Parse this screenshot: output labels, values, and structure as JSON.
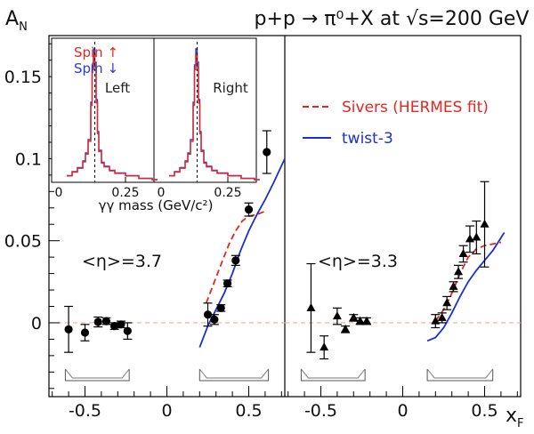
{
  "chart_data": {
    "type": "scatter",
    "title": "p+p → π⁰+X at √s=200 GeV",
    "ylabel": "A",
    "ylabel_sub": "N",
    "xlabel": "x",
    "xlabel_sub": "F",
    "ylim": [
      -0.045,
      0.175
    ],
    "y_ticks": [
      0,
      0.05,
      0.1,
      0.15
    ],
    "y_tick_labels": [
      "0",
      "0.05",
      "0.1",
      "0.15"
    ],
    "zero_line_color": "#f3a6a6",
    "panels": [
      {
        "xlim": [
          -0.72,
          0.72
        ],
        "x_ticks": [
          -0.5,
          0,
          0.5
        ],
        "x_tick_labels": [
          "-0.5",
          "0",
          "0.5"
        ],
        "annotation": "<η>=3.7",
        "series": [
          {
            "marker": "circle",
            "x": [
              -0.6,
              -0.5,
              -0.42,
              -0.37,
              -0.32,
              -0.28,
              -0.24,
              0.25,
              0.29,
              0.33,
              0.37,
              0.42,
              0.5,
              0.61
            ],
            "y": [
              -0.004,
              -0.006,
              0.0005,
              0.001,
              -0.002,
              -0.001,
              -0.005,
              0.005,
              0.002,
              0.009,
              0.024,
              0.038,
              0.069,
              0.104
            ],
            "err": [
              0.014,
              0.005,
              0.003,
              0.002,
              0.002,
              0.002,
              0.005,
              0.007,
              0.003,
              0.002,
              0.002,
              0.003,
              0.004,
              0.013
            ]
          }
        ],
        "curves": [
          {
            "name": "Sivers (HERMES fit)",
            "style": "dashed",
            "color": "#e8251f",
            "x": [
              0.24,
              0.29,
              0.34,
              0.38,
              0.42,
              0.46,
              0.5,
              0.55,
              0.6
            ],
            "y": [
              0.012,
              0.025,
              0.038,
              0.048,
              0.056,
              0.062,
              0.065,
              0.066,
              0.068
            ]
          },
          {
            "name": "twist-3",
            "style": "solid",
            "color": "#1a2fd4",
            "x": [
              0.2,
              0.25,
              0.3,
              0.35,
              0.4,
              0.45,
              0.5,
              0.55,
              0.6,
              0.65,
              0.72
            ],
            "y": [
              -0.015,
              -0.002,
              0.008,
              0.018,
              0.03,
              0.044,
              0.056,
              0.066,
              0.075,
              0.085,
              0.1
            ]
          }
        ]
      },
      {
        "xlim": [
          -0.72,
          0.72
        ],
        "x_ticks": [
          -0.5,
          0,
          0.5
        ],
        "x_tick_labels": [
          "-0.5",
          "0",
          "0.5"
        ],
        "annotation": "<η>=3.3",
        "series": [
          {
            "marker": "triangle",
            "x": [
              -0.56,
              -0.48,
              -0.4,
              -0.35,
              -0.3,
              -0.26,
              -0.22,
              0.2,
              0.24,
              0.27,
              0.31,
              0.34,
              0.37,
              0.41,
              0.45,
              0.5
            ],
            "y": [
              0.009,
              -0.015,
              0.004,
              -0.004,
              0.003,
              0.001,
              0.001,
              0.001,
              0.003,
              0.012,
              0.022,
              0.031,
              0.042,
              0.051,
              0.052,
              0.06
            ],
            "err": [
              0.027,
              0.007,
              0.005,
              0.002,
              0.002,
              0.002,
              0.002,
              0.004,
              0.003,
              0.004,
              0.003,
              0.004,
              0.005,
              0.008,
              0.01,
              0.026
            ]
          }
        ],
        "curves": [
          {
            "name": "Sivers (HERMES fit)",
            "style": "dashed",
            "color": "#e8251f",
            "x": [
              0.2,
              0.25,
              0.3,
              0.35,
              0.4,
              0.45,
              0.5,
              0.55,
              0.6
            ],
            "y": [
              0.001,
              0.008,
              0.018,
              0.03,
              0.04,
              0.045,
              0.047,
              0.048,
              0.049
            ]
          },
          {
            "name": "twist-3",
            "style": "solid",
            "color": "#1a2fd4",
            "x": [
              0.15,
              0.2,
              0.25,
              0.3,
              0.35,
              0.4,
              0.45,
              0.5,
              0.55,
              0.62
            ],
            "y": [
              -0.011,
              -0.009,
              -0.003,
              0.006,
              0.016,
              0.025,
              0.032,
              0.038,
              0.044,
              0.055
            ]
          }
        ]
      }
    ],
    "legend": {
      "placement": "right",
      "entries": [
        "Sivers (HERMES fit)",
        "twist-3"
      ]
    },
    "inset": {
      "xlabel": "γγ mass (GeV/c²)",
      "x_tick_labels": [
        "0",
        "0.25",
        "0",
        "0.25"
      ],
      "panel_labels": [
        "Left",
        "Right"
      ],
      "legend_entries": [
        "Spin ↑",
        "Spin ↓"
      ],
      "spin_up_color": "#e8251f",
      "spin_down_color": "#2a3adf",
      "x": [
        0.03,
        0.05,
        0.07,
        0.09,
        0.1,
        0.11,
        0.12,
        0.125,
        0.13,
        0.135,
        0.14,
        0.145,
        0.15,
        0.16,
        0.17,
        0.19,
        0.21,
        0.25,
        0.3,
        0.35
      ],
      "counts": [
        0.05,
        0.08,
        0.11,
        0.16,
        0.22,
        0.32,
        0.6,
        0.88,
        1.0,
        0.9,
        0.62,
        0.38,
        0.24,
        0.15,
        0.12,
        0.09,
        0.07,
        0.05,
        0.03,
        0.02
      ]
    }
  }
}
